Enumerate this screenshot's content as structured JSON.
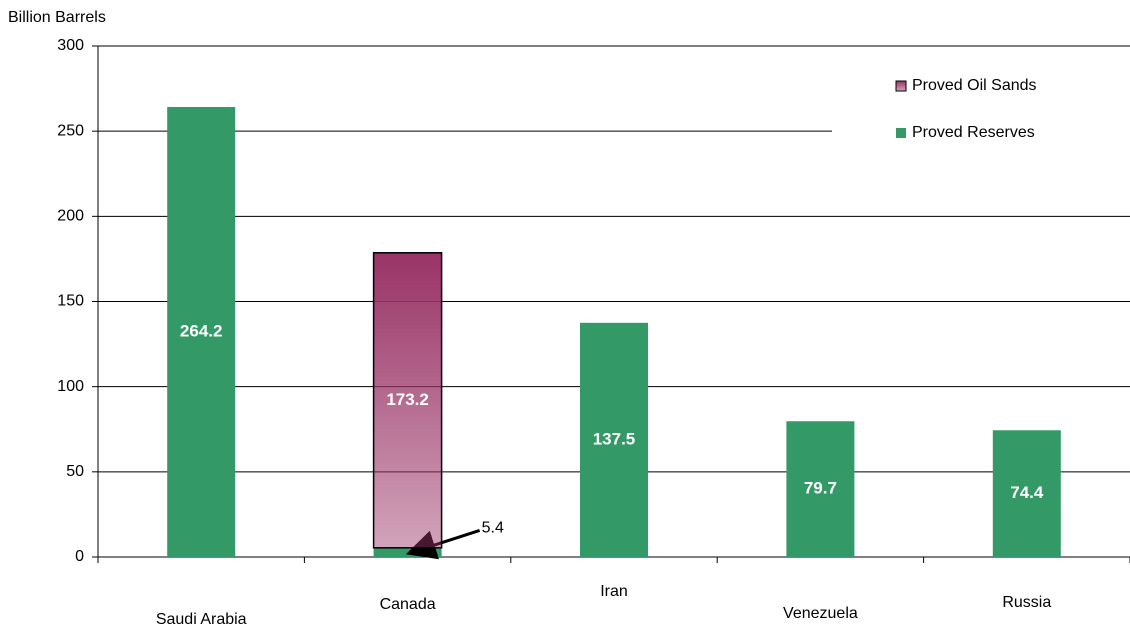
{
  "chart_data": {
    "type": "bar",
    "stacked": true,
    "y_label": "Billion Barrels",
    "categories": [
      "Saudi Arabia",
      "Canada",
      "Iran",
      "Venezuela",
      "Russia"
    ],
    "series": [
      {
        "name": "Proved Reserves",
        "color": "#339966",
        "values": [
          264.2,
          5.4,
          137.5,
          79.7,
          74.4
        ]
      },
      {
        "name": "Proved Oil Sands",
        "color": "#993366",
        "values": [
          null,
          173.2,
          null,
          null,
          null
        ]
      }
    ],
    "ylim": [
      0,
      300
    ],
    "yticks": [
      0,
      50,
      100,
      150,
      200,
      250,
      300
    ],
    "grid": true,
    "legend": "top-right"
  }
}
